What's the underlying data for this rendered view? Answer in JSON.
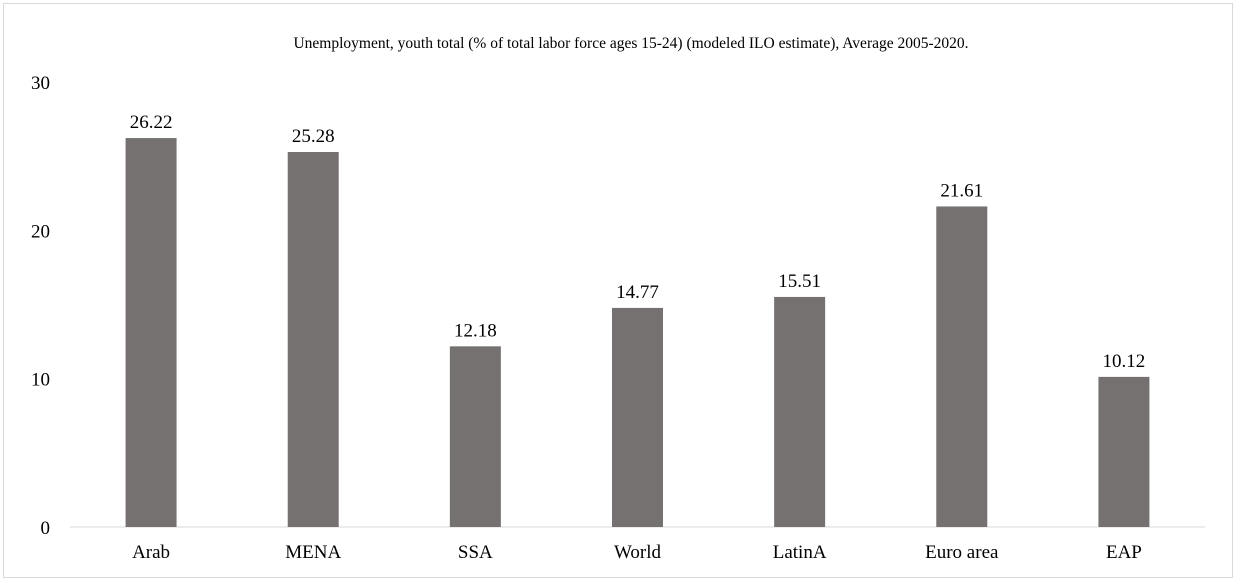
{
  "chart_data": {
    "type": "bar",
    "title": "Unemployment, youth total (% of total labor force ages 15-24) (modeled ILO estimate), Average 2005-2020.",
    "categories": [
      "Arab",
      "MENA",
      "SSA",
      "World",
      "LatinA",
      "Euro area",
      "EAP"
    ],
    "values": [
      26.22,
      25.28,
      12.18,
      14.77,
      15.51,
      21.61,
      10.12
    ],
    "data_labels": [
      "26.22",
      "25.28",
      "12.18",
      "14.77",
      "15.51",
      "21.61",
      "10.12"
    ],
    "y_ticks": [
      "0",
      "10",
      "20",
      "30"
    ],
    "ylim": [
      0,
      30
    ],
    "grid": false,
    "legend": "none",
    "bar_color": "#767171",
    "axis_color": "#d9d9d9"
  }
}
